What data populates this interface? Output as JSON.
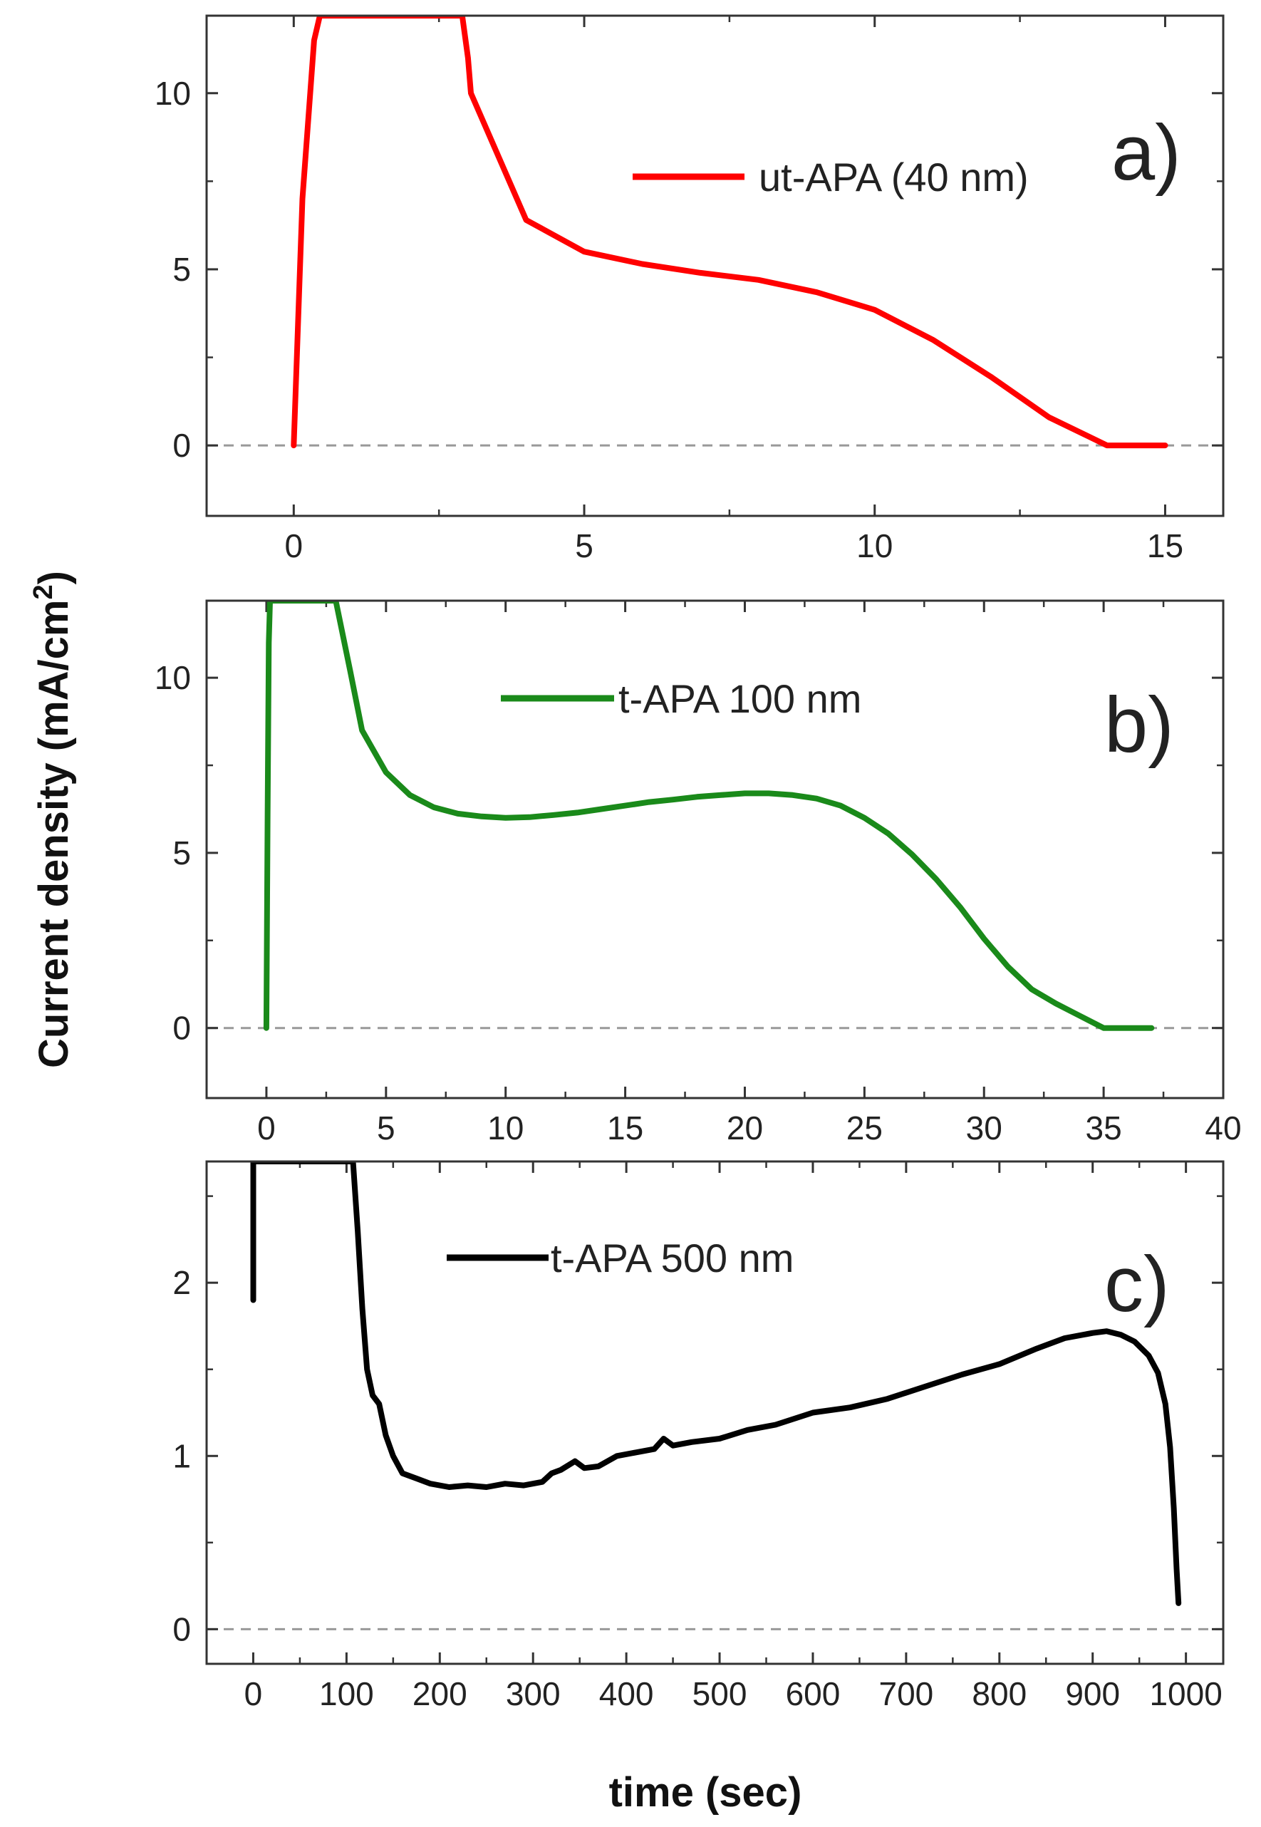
{
  "chart_data": [
    {
      "type": "line",
      "panel": "a)",
      "legend": "ut-APA (40 nm)",
      "color": "#ff0000",
      "xlim": [
        -1.5,
        16
      ],
      "ylim": [
        -2,
        12.2
      ],
      "xticks": [
        0,
        5,
        10,
        15
      ],
      "yticks": [
        0,
        5,
        10
      ],
      "x": [
        0,
        0.15,
        0.35,
        0.45,
        2.9,
        3.0,
        3.05,
        4.0,
        5.0,
        6.0,
        7.0,
        8.0,
        9.0,
        10.0,
        11.0,
        12.0,
        13.0,
        14.0,
        15.0
      ],
      "y": [
        0,
        7.0,
        11.5,
        12.2,
        12.2,
        11.0,
        10.0,
        6.4,
        5.5,
        5.15,
        4.9,
        4.7,
        4.35,
        3.85,
        3.0,
        1.95,
        0.8,
        0,
        0
      ]
    },
    {
      "type": "line",
      "panel": "b)",
      "legend": "t-APA 100 nm",
      "color": "#1a8a1a",
      "xlim": [
        -2.5,
        40
      ],
      "ylim": [
        -2,
        12.2
      ],
      "xticks": [
        0,
        5,
        10,
        15,
        20,
        25,
        30,
        35,
        40
      ],
      "yticks": [
        0,
        5,
        10
      ],
      "x": [
        0,
        0.05,
        0.1,
        0.15,
        2.9,
        3.5,
        4,
        5,
        6,
        7,
        8,
        9,
        10,
        11,
        12,
        13,
        14,
        15,
        16,
        17,
        18,
        19,
        20,
        21,
        22,
        23,
        24,
        25,
        26,
        27,
        28,
        29,
        30,
        31,
        32,
        33,
        34,
        35,
        36,
        37
      ],
      "y": [
        0,
        6.0,
        11.0,
        12.2,
        12.2,
        10.2,
        8.5,
        7.3,
        6.65,
        6.3,
        6.12,
        6.04,
        6.0,
        6.02,
        6.08,
        6.15,
        6.25,
        6.35,
        6.45,
        6.52,
        6.6,
        6.65,
        6.7,
        6.7,
        6.65,
        6.55,
        6.35,
        6.0,
        5.55,
        4.95,
        4.25,
        3.45,
        2.55,
        1.75,
        1.1,
        0.7,
        0.35,
        0,
        0,
        0
      ]
    },
    {
      "type": "line",
      "panel": "c)",
      "legend": "t-APA 500 nm",
      "color": "#000000",
      "xlim": [
        -50,
        1040
      ],
      "ylim": [
        -0.2,
        2.7
      ],
      "xticks": [
        0,
        100,
        200,
        300,
        400,
        500,
        600,
        700,
        800,
        900,
        1000
      ],
      "yticks": [
        0,
        1,
        2
      ],
      "xlabel": "time (sec)",
      "x": [
        0,
        0,
        107,
        112,
        117,
        122,
        128,
        135,
        142,
        150,
        160,
        175,
        190,
        210,
        230,
        250,
        270,
        290,
        310,
        320,
        330,
        345,
        355,
        370,
        390,
        410,
        430,
        440,
        445,
        450,
        470,
        500,
        530,
        560,
        600,
        640,
        680,
        720,
        760,
        800,
        840,
        870,
        900,
        915,
        930,
        945,
        960,
        970,
        978,
        983,
        987,
        990,
        992
      ],
      "y": [
        1.9,
        2.7,
        2.7,
        2.3,
        1.85,
        1.5,
        1.35,
        1.3,
        1.12,
        1.0,
        0.9,
        0.87,
        0.84,
        0.82,
        0.83,
        0.82,
        0.84,
        0.83,
        0.85,
        0.9,
        0.92,
        0.97,
        0.93,
        0.94,
        1.0,
        1.02,
        1.04,
        1.1,
        1.08,
        1.06,
        1.08,
        1.1,
        1.15,
        1.18,
        1.25,
        1.28,
        1.33,
        1.4,
        1.47,
        1.53,
        1.62,
        1.68,
        1.71,
        1.72,
        1.7,
        1.66,
        1.58,
        1.48,
        1.3,
        1.05,
        0.7,
        0.35,
        0.15
      ]
    }
  ],
  "ylabel": "Current density (mA/cm",
  "ylabel_sup": "2",
  "ylabel_close": ")"
}
